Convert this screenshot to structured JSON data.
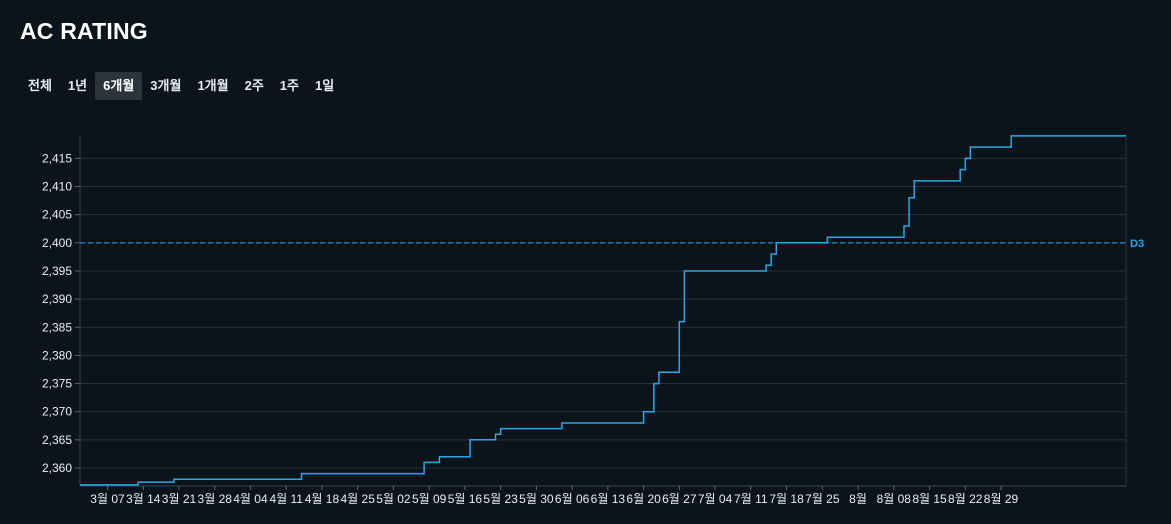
{
  "header": {
    "title": "AC RATING"
  },
  "range_tabs": [
    {
      "label": "전체",
      "active": false
    },
    {
      "label": "1년",
      "active": false
    },
    {
      "label": "6개월",
      "active": true
    },
    {
      "label": "3개월",
      "active": false
    },
    {
      "label": "1개월",
      "active": false
    },
    {
      "label": "2주",
      "active": false
    },
    {
      "label": "1주",
      "active": false
    },
    {
      "label": "1일",
      "active": false
    }
  ],
  "colors": {
    "line": "#29a7e8",
    "grid": "#253240",
    "background": "#0b131b",
    "reference": "#29a7e8"
  },
  "chart_data": {
    "type": "line",
    "step": true,
    "title": "AC RATING",
    "xlabel": "",
    "ylabel": "",
    "ylim": [
      2356.8,
      2418.8
    ],
    "grid": true,
    "y_ticks": [
      2360,
      2365,
      2370,
      2375,
      2380,
      2385,
      2390,
      2395,
      2400,
      2405,
      2410,
      2415
    ],
    "x_ticks": [
      "3월 07",
      "3월 14",
      "3월 21",
      "3월 28",
      "4월 04",
      "4월 11",
      "4월 18",
      "4월 25",
      "5월 02",
      "5월 09",
      "5월 16",
      "5월 23",
      "5월 30",
      "6월 06",
      "6월 13",
      "6월 20",
      "6월 27",
      "7월 04",
      "7월 11",
      "7월 18",
      "7월 25",
      "8월",
      "8월 08",
      "8월 15",
      "8월 22",
      "8월 29"
    ],
    "reference_line": {
      "value": 2400,
      "label": "D3"
    },
    "series": [
      {
        "points": [
          [
            "2025-02-28",
            2357
          ],
          [
            "2025-03-13",
            2357
          ],
          [
            "2025-03-13",
            2357.5
          ],
          [
            "2025-03-20",
            2357.5
          ],
          [
            "2025-03-20",
            2358
          ],
          [
            "2025-04-14",
            2358
          ],
          [
            "2025-04-14",
            2359
          ],
          [
            "2025-05-08",
            2359
          ],
          [
            "2025-05-08",
            2361
          ],
          [
            "2025-05-11",
            2361
          ],
          [
            "2025-05-11",
            2362
          ],
          [
            "2025-05-17",
            2362
          ],
          [
            "2025-05-17",
            2365
          ],
          [
            "2025-05-22",
            2365
          ],
          [
            "2025-05-22",
            2366
          ],
          [
            "2025-05-23",
            2366
          ],
          [
            "2025-05-23",
            2367
          ],
          [
            "2025-06-04",
            2367
          ],
          [
            "2025-06-04",
            2368
          ],
          [
            "2025-06-20",
            2368
          ],
          [
            "2025-06-20",
            2370
          ],
          [
            "2025-06-22",
            2370
          ],
          [
            "2025-06-22",
            2375
          ],
          [
            "2025-06-23",
            2375
          ],
          [
            "2025-06-23",
            2377
          ],
          [
            "2025-06-27",
            2377
          ],
          [
            "2025-06-27",
            2386
          ],
          [
            "2025-06-28",
            2386
          ],
          [
            "2025-06-28",
            2395
          ],
          [
            "2025-07-14",
            2395
          ],
          [
            "2025-07-14",
            2396
          ],
          [
            "2025-07-15",
            2396
          ],
          [
            "2025-07-15",
            2398
          ],
          [
            "2025-07-16",
            2398
          ],
          [
            "2025-07-16",
            2400
          ],
          [
            "2025-07-26",
            2400
          ],
          [
            "2025-07-26",
            2401
          ],
          [
            "2025-08-10",
            2401
          ],
          [
            "2025-08-10",
            2403
          ],
          [
            "2025-08-11",
            2403
          ],
          [
            "2025-08-11",
            2408
          ],
          [
            "2025-08-12",
            2408
          ],
          [
            "2025-08-12",
            2411
          ],
          [
            "2025-08-21",
            2411
          ],
          [
            "2025-08-21",
            2413
          ],
          [
            "2025-08-22",
            2413
          ],
          [
            "2025-08-22",
            2415
          ],
          [
            "2025-08-23",
            2415
          ],
          [
            "2025-08-23",
            2417
          ],
          [
            "2025-08-31",
            2417
          ],
          [
            "2025-08-31",
            2419
          ],
          [
            "2025-09-26",
            2419
          ]
        ]
      }
    ]
  }
}
